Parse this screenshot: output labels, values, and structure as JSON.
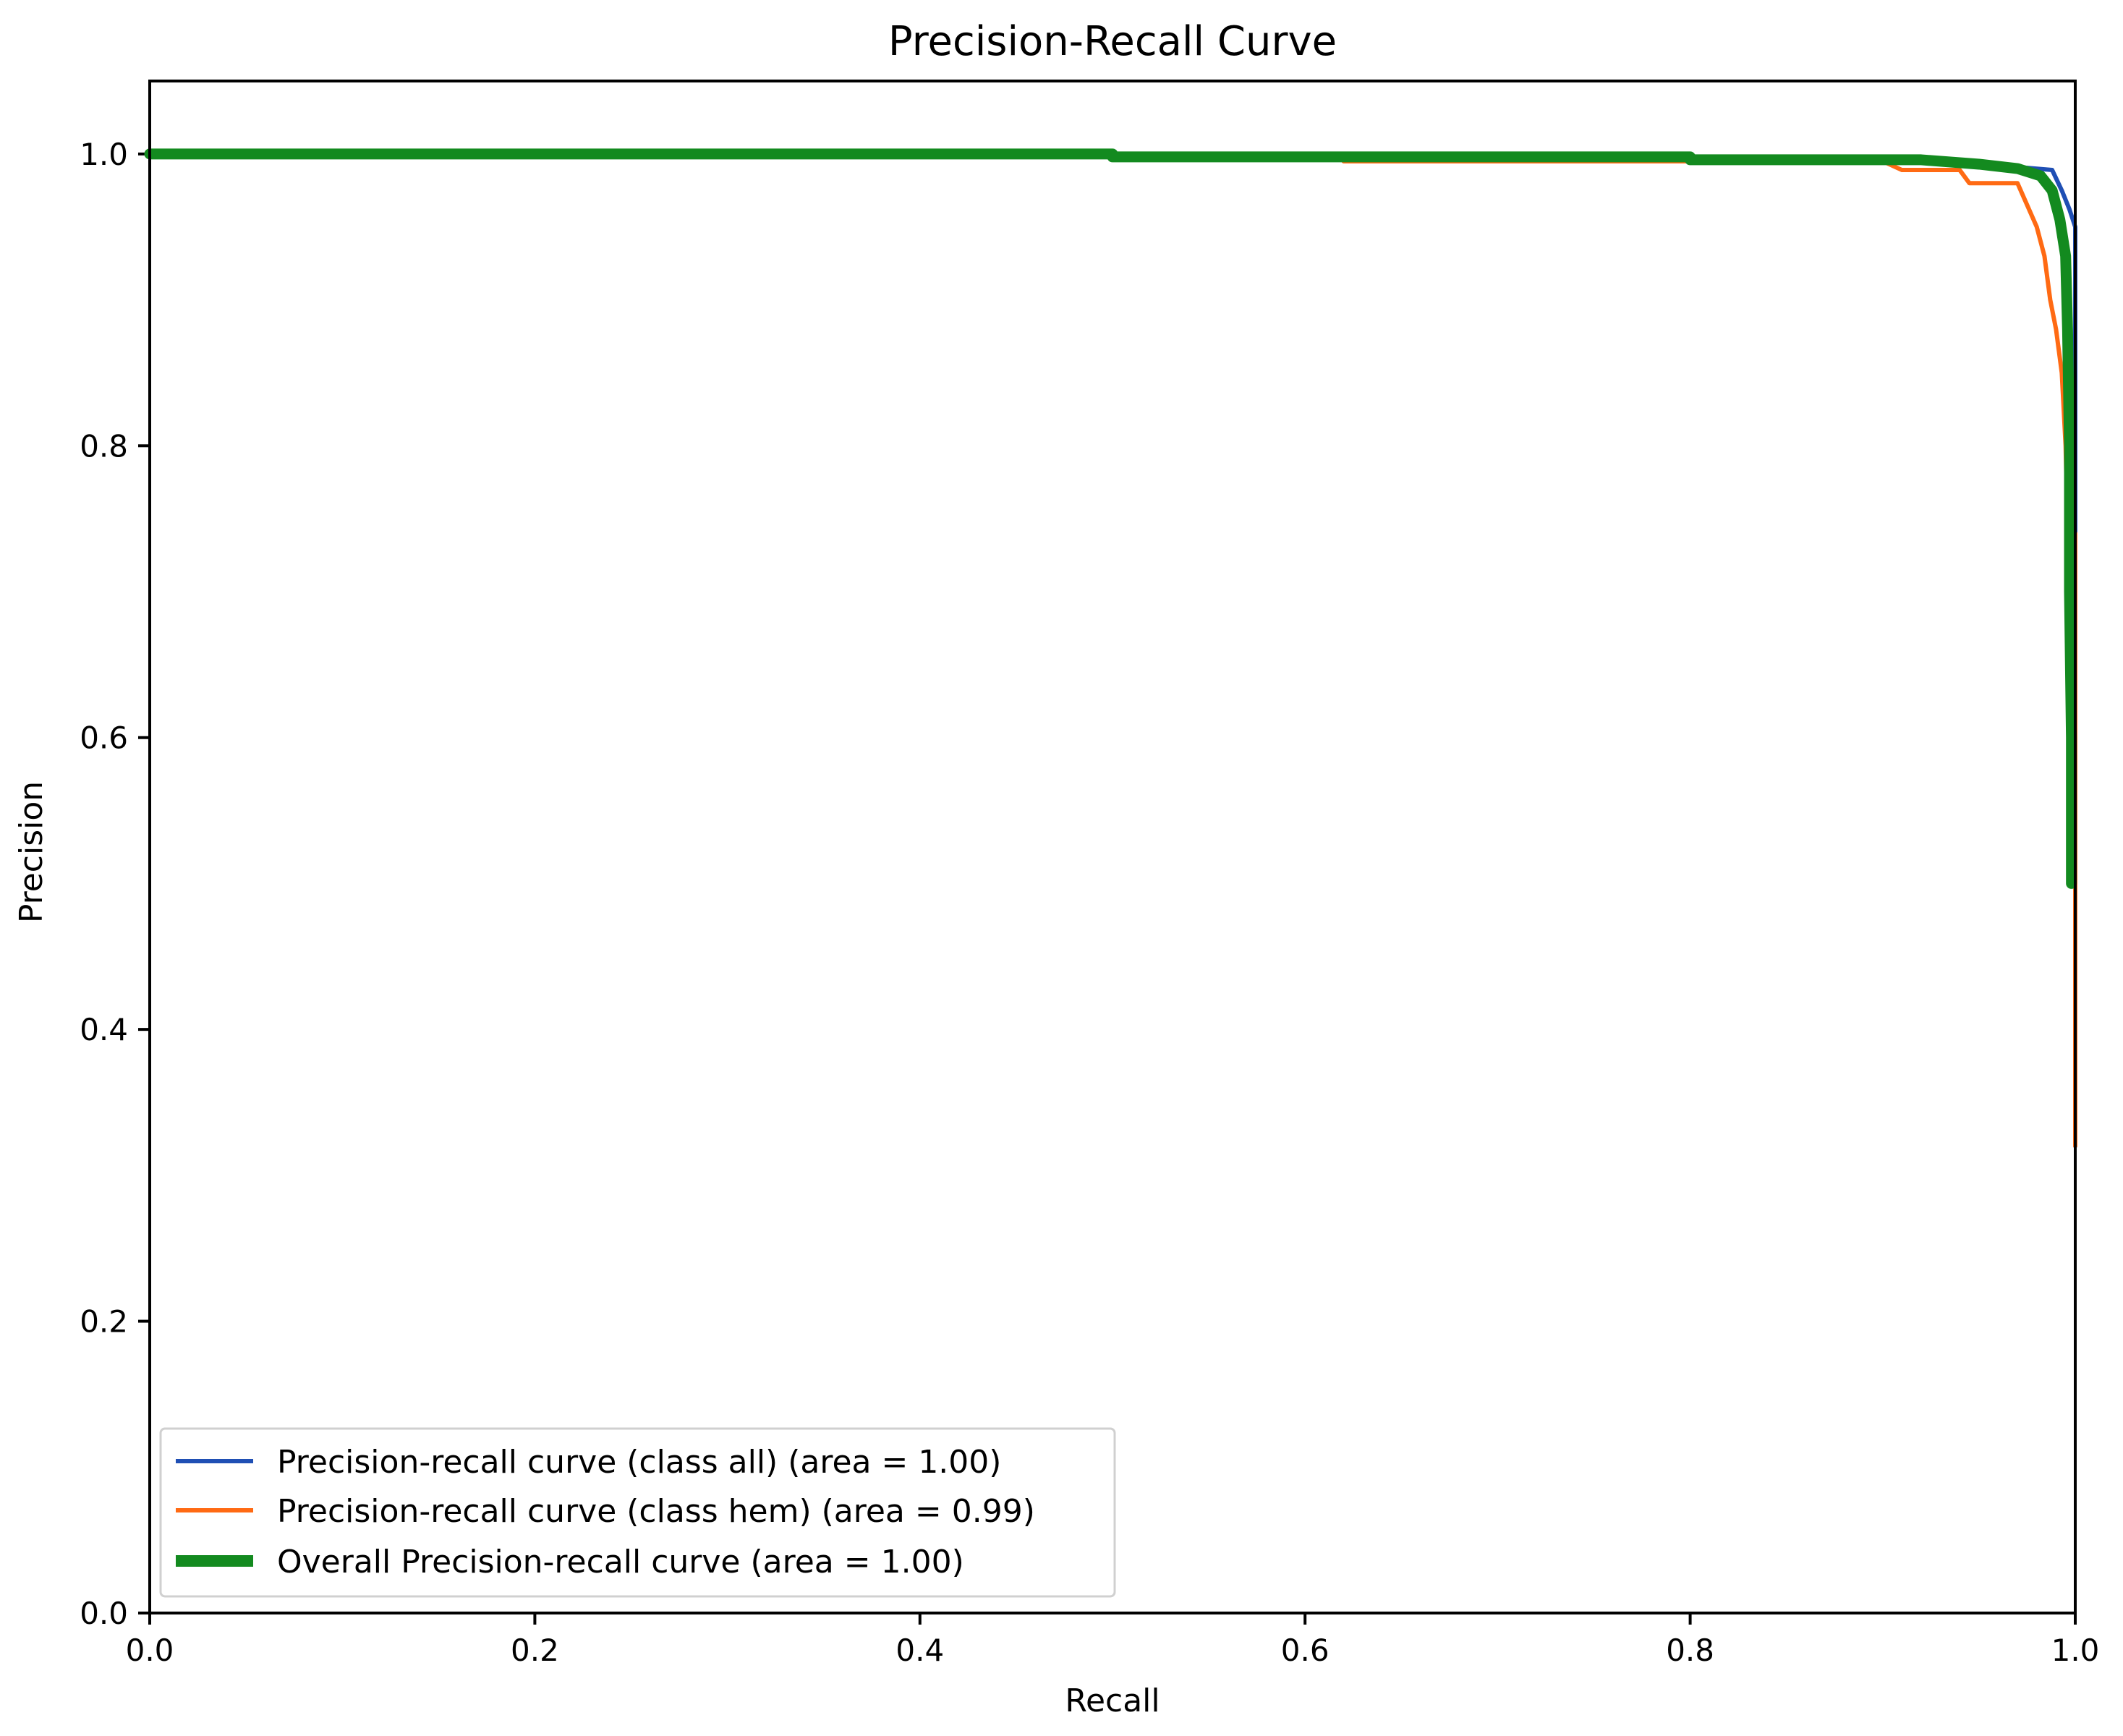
{
  "chart_data": {
    "type": "line",
    "title": "Precision-Recall Curve",
    "xlabel": "Recall",
    "ylabel": "Precision",
    "xlim": [
      0.0,
      1.0
    ],
    "ylim": [
      0.0,
      1.05
    ],
    "xticks": [
      0.0,
      0.2,
      0.4,
      0.6,
      0.8,
      1.0
    ],
    "yticks": [
      0.0,
      0.2,
      0.4,
      0.6,
      0.8,
      1.0
    ],
    "xtick_labels": [
      "0.0",
      "0.2",
      "0.4",
      "0.6",
      "0.8",
      "1.0"
    ],
    "ytick_labels": [
      "0.0",
      "0.2",
      "0.4",
      "0.6",
      "0.8",
      "1.0"
    ],
    "grid": false,
    "legend_position": "lower-left",
    "series": [
      {
        "name": "Precision-recall curve (class all) (area = 1.00)",
        "color": "#1f4fb4",
        "line_width": "normal",
        "points": [
          [
            0.0,
            1.0
          ],
          [
            0.5,
            1.0
          ],
          [
            0.5,
            0.998
          ],
          [
            0.75,
            0.998
          ],
          [
            0.75,
            0.997
          ],
          [
            0.9,
            0.997
          ],
          [
            0.95,
            0.993
          ],
          [
            0.97,
            0.991
          ],
          [
            0.988,
            0.989
          ],
          [
            0.993,
            0.975
          ],
          [
            0.997,
            0.962
          ],
          [
            1.0,
            0.95
          ],
          [
            1.0,
            0.5
          ],
          [
            1.0,
            0.32
          ]
        ]
      },
      {
        "name": "Precision-recall curve (class hem) (area = 0.99)",
        "color": "#ff6a13",
        "line_width": "normal",
        "points": [
          [
            0.0,
            1.0
          ],
          [
            0.5,
            1.0
          ],
          [
            0.5,
            0.998
          ],
          [
            0.62,
            0.998
          ],
          [
            0.62,
            0.995
          ],
          [
            0.9,
            0.995
          ],
          [
            0.91,
            0.989
          ],
          [
            0.94,
            0.989
          ],
          [
            0.945,
            0.98
          ],
          [
            0.97,
            0.98
          ],
          [
            0.975,
            0.965
          ],
          [
            0.98,
            0.95
          ],
          [
            0.984,
            0.93
          ],
          [
            0.987,
            0.9
          ],
          [
            0.99,
            0.88
          ],
          [
            0.993,
            0.85
          ],
          [
            0.995,
            0.8
          ],
          [
            0.996,
            0.74
          ],
          [
            1.0,
            0.74
          ],
          [
            1.0,
            0.32
          ]
        ]
      },
      {
        "name": "Overall Precision-recall curve (area = 1.00)",
        "color": "#138a1f",
        "line_width": "thick",
        "points": [
          [
            0.0,
            1.0
          ],
          [
            0.5,
            1.0
          ],
          [
            0.5,
            0.998
          ],
          [
            0.8,
            0.998
          ],
          [
            0.8,
            0.996
          ],
          [
            0.92,
            0.996
          ],
          [
            0.95,
            0.993
          ],
          [
            0.97,
            0.99
          ],
          [
            0.982,
            0.985
          ],
          [
            0.988,
            0.975
          ],
          [
            0.992,
            0.955
          ],
          [
            0.995,
            0.93
          ],
          [
            0.996,
            0.88
          ],
          [
            0.997,
            0.8
          ],
          [
            0.997,
            0.7
          ],
          [
            0.998,
            0.6
          ],
          [
            0.998,
            0.5
          ]
        ]
      }
    ]
  }
}
